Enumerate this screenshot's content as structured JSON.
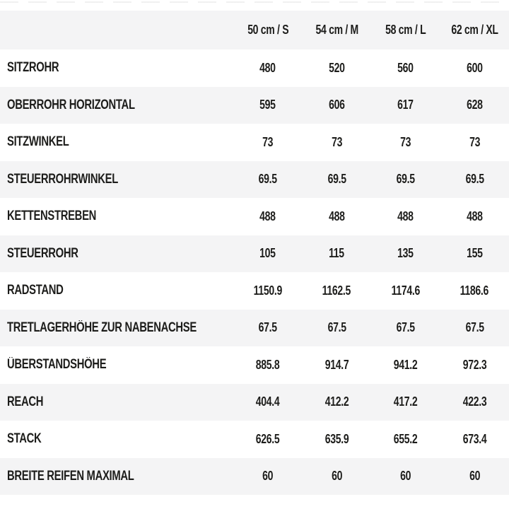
{
  "colors": {
    "stripe": "#f4f4f5",
    "background": "#ffffff",
    "text": "#1d1d1b"
  },
  "chart_data": {
    "type": "table",
    "title": "",
    "columns": [
      "50 cm / S",
      "54 cm / M",
      "58 cm / L",
      "62 cm / XL"
    ],
    "rows": [
      {
        "label": "SITZROHR",
        "values": [
          "480",
          "520",
          "560",
          "600"
        ]
      },
      {
        "label": "OBERROHR HORIZONTAL",
        "values": [
          "595",
          "606",
          "617",
          "628"
        ]
      },
      {
        "label": "SITZWINKEL",
        "values": [
          "73",
          "73",
          "73",
          "73"
        ]
      },
      {
        "label": "STEUERROHRWINKEL",
        "values": [
          "69.5",
          "69.5",
          "69.5",
          "69.5"
        ]
      },
      {
        "label": "KETTENSTREBEN",
        "values": [
          "488",
          "488",
          "488",
          "488"
        ]
      },
      {
        "label": "STEUERROHR",
        "values": [
          "105",
          "115",
          "135",
          "155"
        ]
      },
      {
        "label": "RADSTAND",
        "values": [
          "1150.9",
          "1162.5",
          "1174.6",
          "1186.6"
        ]
      },
      {
        "label": "TRETLAGERHÖHE ZUR NABENACHSE",
        "values": [
          "67.5",
          "67.5",
          "67.5",
          "67.5"
        ]
      },
      {
        "label": "ÜBERSTANDSHÖHE",
        "values": [
          "885.8",
          "914.7",
          "941.2",
          "972.3"
        ]
      },
      {
        "label": "REACH",
        "values": [
          "404.4",
          "412.2",
          "417.2",
          "422.3"
        ]
      },
      {
        "label": "STACK",
        "values": [
          "626.5",
          "635.9",
          "655.2",
          "673.4"
        ]
      },
      {
        "label": "BREITE REIFEN MAXIMAL",
        "values": [
          "60",
          "60",
          "60",
          "60"
        ]
      }
    ],
    "layout": {
      "striped": true,
      "stripe_color": "#f4f4f5",
      "first_band": "header",
      "grid": false,
      "value_alignment": "center",
      "label_alignment": "left"
    }
  }
}
